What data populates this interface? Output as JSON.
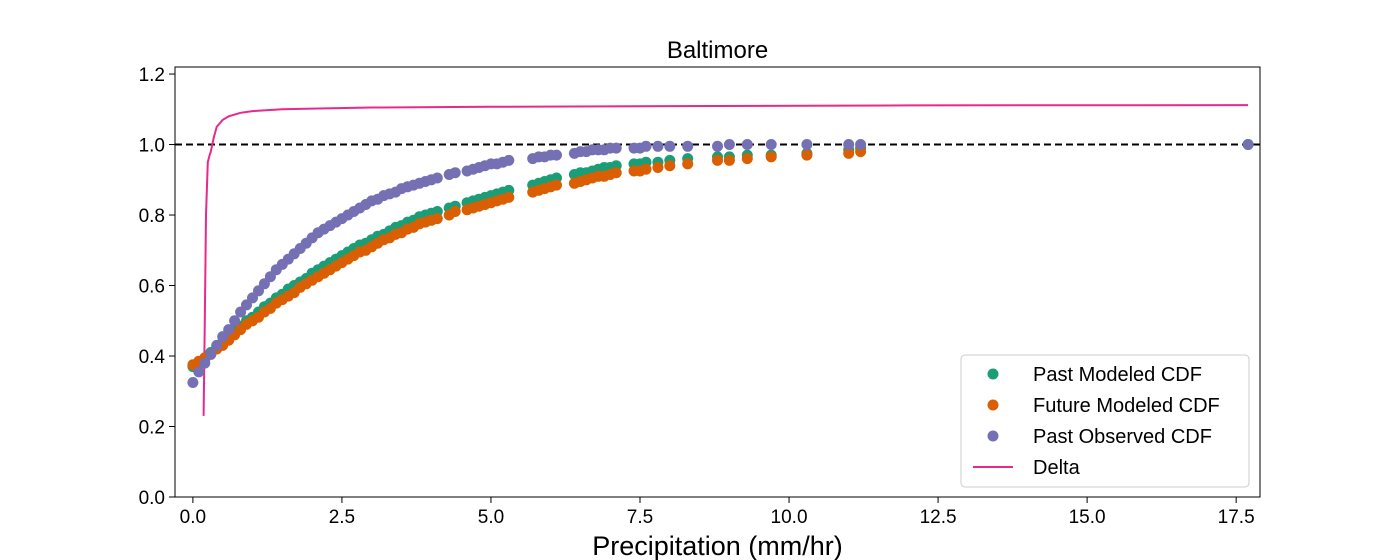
{
  "chart_data": {
    "type": "scatter",
    "title": "Baltimore",
    "xlabel": "Precipitation (mm/hr)",
    "ylabel": "",
    "xlim": [
      -0.3,
      17.9
    ],
    "ylim": [
      0.0,
      1.22
    ],
    "xticks": [
      0.0,
      2.5,
      5.0,
      7.5,
      10.0,
      12.5,
      15.0,
      17.5
    ],
    "xtick_labels": [
      "0.0",
      "2.5",
      "5.0",
      "7.5",
      "10.0",
      "12.5",
      "15.0",
      "17.5"
    ],
    "yticks": [
      0.0,
      0.2,
      0.4,
      0.6,
      0.8,
      1.0,
      1.2
    ],
    "ytick_labels": [
      "0.0",
      "0.2",
      "0.4",
      "0.6",
      "0.8",
      "1.0",
      "1.2"
    ],
    "reference_line": {
      "y": 1.0,
      "style": "dashed",
      "color": "#000000"
    },
    "legend_position": "bottom-right",
    "series": [
      {
        "name": "Past Modeled CDF",
        "kind": "scatter",
        "color": "#1b9e77",
        "x": [
          0.0,
          0.1,
          0.2,
          0.3,
          0.4,
          0.5,
          0.6,
          0.7,
          0.8,
          0.9,
          1.0,
          1.1,
          1.2,
          1.3,
          1.4,
          1.5,
          1.6,
          1.7,
          1.8,
          1.9,
          2.0,
          2.1,
          2.2,
          2.3,
          2.4,
          2.5,
          2.6,
          2.7,
          2.8,
          2.9,
          3.0,
          3.1,
          3.2,
          3.3,
          3.4,
          3.5,
          3.6,
          3.7,
          3.8,
          3.9,
          4.0,
          4.1,
          4.3,
          4.4,
          4.6,
          4.7,
          4.8,
          4.9,
          5.0,
          5.1,
          5.2,
          5.3,
          5.7,
          5.8,
          5.9,
          6.0,
          6.1,
          6.4,
          6.5,
          6.6,
          6.7,
          6.8,
          6.9,
          7.0,
          7.1,
          7.4,
          7.5,
          7.6,
          7.8,
          8.0,
          8.3,
          8.8,
          9.0,
          9.3,
          9.7,
          10.3,
          11.0,
          11.2,
          17.7
        ],
        "y": [
          0.37,
          0.38,
          0.39,
          0.41,
          0.425,
          0.44,
          0.455,
          0.47,
          0.485,
          0.5,
          0.51,
          0.525,
          0.54,
          0.55,
          0.565,
          0.575,
          0.59,
          0.6,
          0.61,
          0.62,
          0.635,
          0.645,
          0.655,
          0.665,
          0.675,
          0.685,
          0.695,
          0.705,
          0.715,
          0.72,
          0.73,
          0.74,
          0.745,
          0.755,
          0.765,
          0.77,
          0.78,
          0.785,
          0.795,
          0.8,
          0.805,
          0.81,
          0.82,
          0.825,
          0.835,
          0.84,
          0.845,
          0.85,
          0.855,
          0.86,
          0.865,
          0.87,
          0.885,
          0.89,
          0.895,
          0.9,
          0.905,
          0.915,
          0.92,
          0.92,
          0.925,
          0.93,
          0.935,
          0.935,
          0.94,
          0.945,
          0.945,
          0.95,
          0.95,
          0.955,
          0.96,
          0.965,
          0.965,
          0.97,
          0.97,
          0.975,
          0.985,
          0.99,
          1.0
        ]
      },
      {
        "name": "Future Modeled CDF",
        "kind": "scatter",
        "color": "#d95f02",
        "x": [
          0.0,
          0.1,
          0.2,
          0.3,
          0.4,
          0.5,
          0.6,
          0.7,
          0.8,
          0.9,
          1.0,
          1.1,
          1.2,
          1.3,
          1.4,
          1.5,
          1.6,
          1.7,
          1.8,
          1.9,
          2.0,
          2.1,
          2.2,
          2.3,
          2.4,
          2.5,
          2.6,
          2.7,
          2.8,
          2.9,
          3.0,
          3.1,
          3.2,
          3.3,
          3.4,
          3.5,
          3.6,
          3.7,
          3.8,
          3.9,
          4.0,
          4.1,
          4.3,
          4.4,
          4.6,
          4.7,
          4.8,
          4.9,
          5.0,
          5.1,
          5.2,
          5.3,
          5.7,
          5.8,
          5.9,
          6.0,
          6.1,
          6.4,
          6.5,
          6.6,
          6.7,
          6.8,
          6.9,
          7.0,
          7.1,
          7.4,
          7.5,
          7.6,
          7.8,
          8.0,
          8.3,
          8.8,
          9.0,
          9.3,
          9.7,
          10.3,
          11.0,
          11.2
        ],
        "y": [
          0.375,
          0.385,
          0.395,
          0.405,
          0.42,
          0.43,
          0.445,
          0.46,
          0.475,
          0.49,
          0.5,
          0.51,
          0.525,
          0.535,
          0.55,
          0.56,
          0.57,
          0.58,
          0.595,
          0.605,
          0.615,
          0.625,
          0.635,
          0.645,
          0.655,
          0.665,
          0.675,
          0.685,
          0.695,
          0.7,
          0.71,
          0.72,
          0.73,
          0.735,
          0.745,
          0.75,
          0.76,
          0.765,
          0.775,
          0.78,
          0.785,
          0.79,
          0.8,
          0.81,
          0.815,
          0.82,
          0.825,
          0.83,
          0.835,
          0.84,
          0.845,
          0.85,
          0.865,
          0.87,
          0.875,
          0.88,
          0.885,
          0.89,
          0.895,
          0.9,
          0.905,
          0.91,
          0.91,
          0.915,
          0.92,
          0.925,
          0.925,
          0.93,
          0.935,
          0.94,
          0.945,
          0.955,
          0.955,
          0.96,
          0.965,
          0.97,
          0.975,
          0.98
        ]
      },
      {
        "name": "Past Observed CDF",
        "kind": "scatter",
        "color": "#7570b3",
        "x": [
          0.0,
          0.1,
          0.2,
          0.3,
          0.4,
          0.5,
          0.6,
          0.7,
          0.8,
          0.9,
          1.0,
          1.1,
          1.2,
          1.3,
          1.4,
          1.5,
          1.6,
          1.7,
          1.8,
          1.9,
          2.0,
          2.1,
          2.2,
          2.3,
          2.4,
          2.5,
          2.6,
          2.7,
          2.8,
          2.9,
          3.0,
          3.1,
          3.2,
          3.3,
          3.4,
          3.5,
          3.6,
          3.7,
          3.8,
          3.9,
          4.0,
          4.1,
          4.3,
          4.4,
          4.6,
          4.7,
          4.8,
          4.9,
          5.0,
          5.1,
          5.2,
          5.3,
          5.7,
          5.8,
          5.9,
          6.0,
          6.1,
          6.4,
          6.5,
          6.6,
          6.7,
          6.8,
          6.9,
          7.0,
          7.1,
          7.4,
          7.5,
          7.6,
          7.8,
          8.0,
          8.3,
          8.8,
          9.0,
          9.3,
          9.7,
          10.3,
          11.0,
          11.2,
          17.7
        ],
        "y": [
          0.325,
          0.355,
          0.38,
          0.405,
          0.43,
          0.455,
          0.475,
          0.5,
          0.525,
          0.545,
          0.565,
          0.585,
          0.605,
          0.625,
          0.645,
          0.66,
          0.675,
          0.69,
          0.705,
          0.72,
          0.735,
          0.75,
          0.76,
          0.77,
          0.78,
          0.79,
          0.8,
          0.81,
          0.82,
          0.83,
          0.84,
          0.845,
          0.855,
          0.86,
          0.865,
          0.875,
          0.88,
          0.885,
          0.89,
          0.895,
          0.9,
          0.905,
          0.915,
          0.92,
          0.925,
          0.93,
          0.935,
          0.94,
          0.945,
          0.945,
          0.95,
          0.955,
          0.96,
          0.965,
          0.965,
          0.97,
          0.97,
          0.975,
          0.98,
          0.98,
          0.985,
          0.985,
          0.985,
          0.99,
          0.99,
          0.99,
          0.99,
          0.995,
          0.995,
          0.995,
          0.995,
          0.995,
          1.0,
          1.0,
          1.0,
          1.0,
          1.0,
          1.0,
          1.0
        ]
      },
      {
        "name": "Delta",
        "kind": "line",
        "color": "#e7298a",
        "x": [
          0.18,
          0.2,
          0.22,
          0.25,
          0.28,
          0.3,
          0.35,
          0.4,
          0.5,
          0.6,
          0.8,
          1.0,
          1.5,
          2.0,
          3.0,
          5.0,
          8.0,
          12.0,
          17.7
        ],
        "y": [
          0.23,
          0.5,
          0.8,
          0.95,
          0.97,
          0.98,
          1.02,
          1.05,
          1.07,
          1.08,
          1.09,
          1.095,
          1.1,
          1.102,
          1.105,
          1.107,
          1.109,
          1.111,
          1.112
        ]
      }
    ]
  }
}
